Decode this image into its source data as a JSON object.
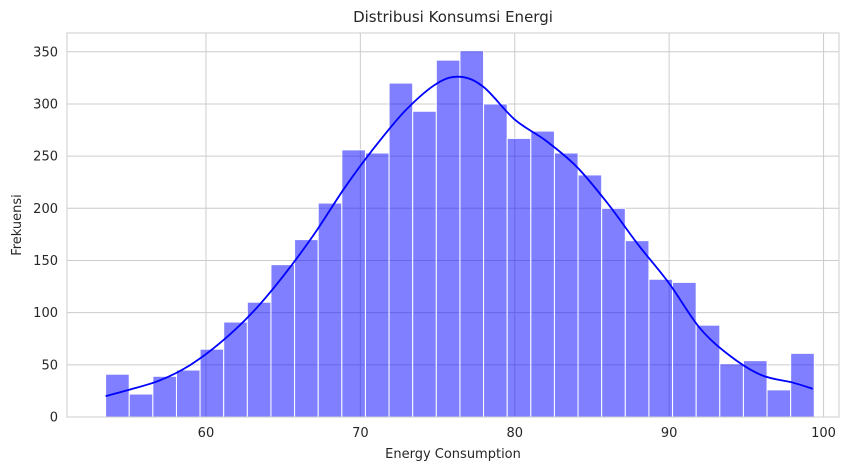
{
  "chart_data": {
    "type": "bar",
    "title": "Distribusi Konsumsi Energi",
    "xlabel": "Energy Consumption",
    "ylabel": "Frekuensi",
    "xlim": [
      51.0,
      101.0
    ],
    "ylim": [
      0,
      368
    ],
    "xticks": [
      60,
      70,
      80,
      90,
      100
    ],
    "yticks": [
      0,
      50,
      100,
      150,
      200,
      250,
      300,
      350
    ],
    "grid": true,
    "bin_start": 53.5,
    "bin_width": 1.53,
    "values": [
      41,
      22,
      39,
      45,
      65,
      91,
      110,
      146,
      170,
      205,
      256,
      253,
      320,
      293,
      342,
      351,
      300,
      267,
      274,
      253,
      232,
      200,
      169,
      132,
      129,
      88,
      51,
      54,
      26,
      61
    ],
    "kde": {
      "x": [
        53.5,
        55,
        57,
        59,
        61,
        63,
        65,
        67,
        69,
        71,
        73,
        75,
        76.5,
        78,
        80,
        82,
        84,
        86,
        88,
        90,
        92,
        94,
        96,
        98,
        99.3
      ],
      "y": [
        20,
        26,
        35,
        50,
        72,
        100,
        135,
        175,
        220,
        260,
        295,
        320,
        326,
        316,
        285,
        265,
        240,
        205,
        165,
        128,
        85,
        58,
        40,
        33,
        27
      ]
    },
    "colors": {
      "bar": "rgba(0,0,255,0.5)",
      "kde": "#0000ff"
    }
  }
}
